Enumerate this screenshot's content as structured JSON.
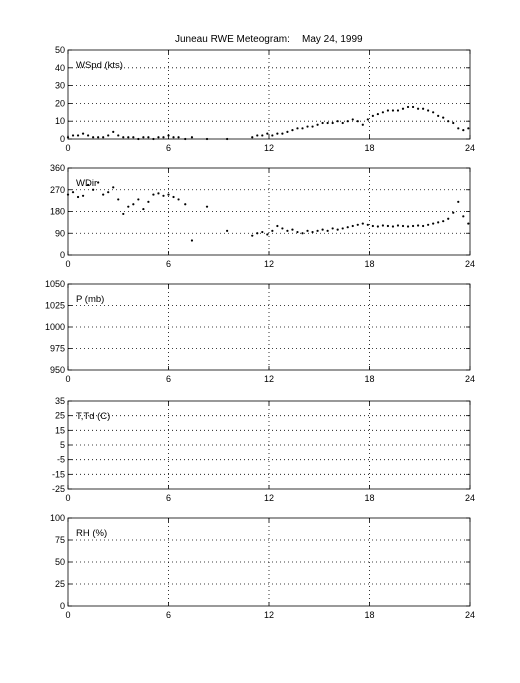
{
  "header": {
    "title": "Juneau RWE Meteogram:",
    "date": "May 24, 1999"
  },
  "chart_data": [
    {
      "type": "scatter",
      "panel_label": "WSpd (kts)",
      "xlim": [
        0,
        24
      ],
      "ylim": [
        0,
        50
      ],
      "xticks": [
        0,
        6,
        12,
        18,
        24
      ],
      "yticks": [
        0,
        10,
        20,
        30,
        40,
        50
      ],
      "grid": true,
      "x": [
        0.0,
        0.3,
        0.6,
        0.9,
        1.2,
        1.5,
        1.8,
        2.1,
        2.4,
        2.7,
        3.0,
        3.3,
        3.6,
        3.9,
        4.2,
        4.5,
        4.8,
        5.1,
        5.4,
        5.7,
        6.0,
        6.3,
        6.6,
        7.0,
        7.4,
        8.3,
        9.5,
        11.0,
        11.3,
        11.6,
        11.9,
        12.2,
        12.5,
        12.8,
        13.1,
        13.4,
        13.7,
        14.0,
        14.3,
        14.6,
        14.9,
        15.2,
        15.5,
        15.8,
        16.1,
        16.4,
        16.7,
        17.0,
        17.3,
        17.6,
        17.9,
        18.2,
        18.5,
        18.8,
        19.1,
        19.4,
        19.7,
        20.0,
        20.3,
        20.6,
        20.9,
        21.2,
        21.5,
        21.8,
        22.1,
        22.4,
        22.7,
        23.0,
        23.3,
        23.6,
        23.9
      ],
      "y": [
        1,
        2,
        2,
        3,
        2,
        1,
        1,
        1,
        2,
        4,
        2,
        1,
        1,
        1,
        0,
        1,
        1,
        0,
        1,
        1,
        2,
        1,
        1,
        0,
        1,
        0,
        0,
        1,
        2,
        2,
        3,
        2,
        3,
        3,
        4,
        5,
        6,
        6,
        7,
        7,
        8,
        9,
        9,
        9,
        10,
        9,
        10,
        11,
        10,
        8,
        11,
        13,
        14,
        15,
        16,
        16,
        16,
        17,
        18,
        18,
        17,
        17,
        16,
        15,
        13,
        12,
        10,
        9,
        6,
        5,
        6
      ]
    },
    {
      "type": "scatter",
      "panel_label": "WDir",
      "xlim": [
        0,
        24
      ],
      "ylim": [
        0,
        360
      ],
      "xticks": [
        0,
        6,
        12,
        18,
        24
      ],
      "yticks": [
        0,
        90,
        180,
        270,
        360
      ],
      "grid": true,
      "x": [
        0.0,
        0.3,
        0.6,
        0.9,
        1.2,
        1.5,
        1.8,
        2.1,
        2.4,
        2.7,
        3.0,
        3.3,
        3.6,
        3.9,
        4.2,
        4.5,
        4.8,
        5.1,
        5.4,
        5.7,
        6.0,
        6.3,
        6.6,
        7.0,
        7.4,
        8.3,
        9.5,
        11.0,
        11.3,
        11.6,
        11.9,
        12.2,
        12.5,
        12.8,
        13.1,
        13.4,
        13.7,
        14.0,
        14.3,
        14.6,
        14.9,
        15.2,
        15.5,
        15.8,
        16.1,
        16.4,
        16.7,
        17.0,
        17.3,
        17.6,
        17.9,
        18.2,
        18.5,
        18.8,
        19.1,
        19.4,
        19.7,
        20.0,
        20.3,
        20.6,
        20.9,
        21.2,
        21.5,
        21.8,
        22.1,
        22.4,
        22.7,
        23.0,
        23.3,
        23.6,
        23.9
      ],
      "y": [
        250,
        260,
        240,
        245,
        290,
        270,
        300,
        250,
        260,
        280,
        230,
        170,
        200,
        210,
        230,
        190,
        220,
        250,
        255,
        245,
        250,
        240,
        230,
        210,
        60,
        200,
        100,
        80,
        90,
        95,
        85,
        100,
        120,
        110,
        100,
        105,
        95,
        90,
        100,
        95,
        100,
        105,
        100,
        110,
        105,
        110,
        115,
        120,
        125,
        130,
        125,
        120,
        118,
        122,
        120,
        118,
        122,
        120,
        118,
        120,
        122,
        120,
        125,
        130,
        135,
        140,
        150,
        175,
        220,
        160,
        130
      ]
    },
    {
      "type": "scatter",
      "panel_label": "P (mb)",
      "xlim": [
        0,
        24
      ],
      "ylim": [
        950,
        1050
      ],
      "xticks": [
        0,
        6,
        12,
        18,
        24
      ],
      "yticks": [
        950,
        975,
        1000,
        1025,
        1050
      ],
      "grid": true,
      "x": [],
      "y": []
    },
    {
      "type": "scatter",
      "panel_label": "T,Td (C)",
      "xlim": [
        0,
        24
      ],
      "ylim": [
        -25,
        35
      ],
      "xticks": [
        0,
        6,
        12,
        18,
        24
      ],
      "yticks": [
        -25,
        -15,
        -5,
        5,
        15,
        25,
        35
      ],
      "grid": true,
      "x": [],
      "y": []
    },
    {
      "type": "scatter",
      "panel_label": "RH (%)",
      "xlim": [
        0,
        24
      ],
      "ylim": [
        0,
        100
      ],
      "xticks": [
        0,
        6,
        12,
        18,
        24
      ],
      "yticks": [
        0,
        25,
        50,
        75,
        100
      ],
      "grid": true,
      "x": [],
      "y": []
    }
  ]
}
